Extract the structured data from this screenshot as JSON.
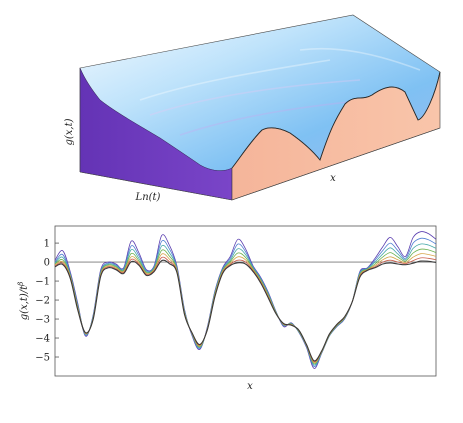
{
  "chart_data": [
    {
      "type": "surface",
      "zlabel": "g(x,t)",
      "ylabel": "Ln(t)",
      "xlabel": "x"
    },
    {
      "type": "line",
      "xlabel": "x",
      "ylabel": "g(x,t)/t^β",
      "ylabel_main": "g(x,t)/t",
      "ylabel_exponent": "β",
      "yticks": [
        1,
        0,
        -1,
        -2,
        -3,
        -4,
        -5
      ],
      "ylim": [
        -6,
        1.9
      ],
      "xlim": [
        0,
        1
      ],
      "reference_line_y": 0,
      "x": [
        0.0,
        0.02,
        0.04,
        0.06,
        0.08,
        0.1,
        0.12,
        0.14,
        0.16,
        0.18,
        0.2,
        0.22,
        0.24,
        0.26,
        0.28,
        0.3,
        0.32,
        0.34,
        0.36,
        0.38,
        0.4,
        0.42,
        0.44,
        0.46,
        0.48,
        0.5,
        0.52,
        0.54,
        0.56,
        0.58,
        0.6,
        0.62,
        0.64,
        0.66,
        0.68,
        0.7,
        0.72,
        0.74,
        0.76,
        0.78,
        0.8,
        0.82,
        0.84,
        0.86,
        0.88,
        0.9,
        0.92,
        0.94,
        0.96,
        0.98,
        1.0
      ],
      "series": [
        {
          "values": [
            0.1,
            0.6,
            -0.5,
            -2.2,
            -3.9,
            -2.8,
            -0.4,
            0.0,
            -0.1,
            -0.3,
            1.1,
            0.5,
            -0.4,
            -0.2,
            1.4,
            0.9,
            -0.2,
            -2.5,
            -3.9,
            -4.6,
            -3.4,
            -1.5,
            -0.3,
            0.3,
            1.2,
            0.7,
            -0.2,
            -0.8,
            -1.6,
            -2.6,
            -3.4,
            -3.2,
            -3.7,
            -4.5,
            -5.6,
            -4.8,
            -3.9,
            -3.4,
            -3.0,
            -2.1,
            -0.5,
            -0.3,
            0.2,
            0.8,
            1.3,
            0.8,
            0.3,
            1.3,
            1.6,
            1.5,
            1.2
          ]
        },
        {
          "values": [
            0.0,
            0.4,
            -0.6,
            -2.3,
            -3.85,
            -2.85,
            -0.5,
            -0.05,
            -0.15,
            -0.35,
            0.85,
            0.35,
            -0.45,
            -0.25,
            1.1,
            0.7,
            -0.3,
            -2.55,
            -3.85,
            -4.55,
            -3.45,
            -1.55,
            -0.35,
            0.2,
            0.95,
            0.55,
            -0.25,
            -0.85,
            -1.65,
            -2.62,
            -3.35,
            -3.22,
            -3.68,
            -4.45,
            -5.5,
            -4.78,
            -3.9,
            -3.38,
            -2.98,
            -2.1,
            -0.55,
            -0.33,
            0.1,
            0.6,
            1.0,
            0.6,
            0.2,
            1.0,
            1.25,
            1.18,
            0.95
          ]
        },
        {
          "values": [
            -0.05,
            0.25,
            -0.65,
            -2.35,
            -3.8,
            -2.9,
            -0.55,
            -0.1,
            -0.2,
            -0.4,
            0.65,
            0.2,
            -0.5,
            -0.3,
            0.85,
            0.5,
            -0.35,
            -2.6,
            -3.82,
            -4.5,
            -3.48,
            -1.6,
            -0.4,
            0.1,
            0.7,
            0.4,
            -0.3,
            -0.9,
            -1.7,
            -2.64,
            -3.32,
            -3.24,
            -3.66,
            -4.42,
            -5.42,
            -4.76,
            -3.88,
            -3.36,
            -2.96,
            -2.1,
            -0.6,
            -0.35,
            0.0,
            0.42,
            0.75,
            0.42,
            0.12,
            0.72,
            0.95,
            0.9,
            0.72
          ]
        },
        {
          "values": [
            -0.1,
            0.12,
            -0.7,
            -2.4,
            -3.78,
            -2.94,
            -0.6,
            -0.15,
            -0.25,
            -0.45,
            0.45,
            0.08,
            -0.55,
            -0.35,
            0.62,
            0.32,
            -0.4,
            -2.64,
            -3.8,
            -4.46,
            -3.5,
            -1.65,
            -0.45,
            0.02,
            0.48,
            0.25,
            -0.35,
            -0.95,
            -1.75,
            -2.66,
            -3.3,
            -3.26,
            -3.64,
            -4.4,
            -5.36,
            -4.74,
            -3.86,
            -3.34,
            -2.94,
            -2.1,
            -0.65,
            -0.38,
            -0.1,
            0.26,
            0.5,
            0.26,
            0.05,
            0.48,
            0.68,
            0.64,
            0.5
          ]
        },
        {
          "values": [
            -0.15,
            0.02,
            -0.75,
            -2.45,
            -3.76,
            -2.97,
            -0.65,
            -0.2,
            -0.3,
            -0.5,
            0.28,
            -0.02,
            -0.6,
            -0.4,
            0.42,
            0.16,
            -0.45,
            -2.68,
            -3.78,
            -4.42,
            -3.52,
            -1.7,
            -0.5,
            -0.06,
            0.28,
            0.12,
            -0.4,
            -1.0,
            -1.8,
            -2.68,
            -3.28,
            -3.28,
            -3.62,
            -4.38,
            -5.3,
            -4.72,
            -3.84,
            -3.32,
            -2.92,
            -2.1,
            -0.7,
            -0.4,
            -0.18,
            0.12,
            0.28,
            0.12,
            -0.02,
            0.26,
            0.44,
            0.4,
            0.3
          ]
        },
        {
          "values": [
            -0.2,
            -0.06,
            -0.8,
            -2.5,
            -3.74,
            -3.0,
            -0.7,
            -0.25,
            -0.35,
            -0.55,
            0.14,
            -0.1,
            -0.65,
            -0.45,
            0.24,
            0.02,
            -0.5,
            -2.72,
            -3.76,
            -4.38,
            -3.54,
            -1.75,
            -0.55,
            -0.12,
            0.1,
            0.0,
            -0.45,
            -1.05,
            -1.85,
            -2.7,
            -3.26,
            -3.3,
            -3.6,
            -4.36,
            -5.25,
            -4.7,
            -3.82,
            -3.3,
            -2.9,
            -2.1,
            -0.75,
            -0.42,
            -0.25,
            0.0,
            0.1,
            0.0,
            -0.08,
            0.08,
            0.22,
            0.2,
            0.12
          ]
        },
        {
          "values": [
            -0.25,
            -0.12,
            -0.85,
            -2.55,
            -3.72,
            -3.03,
            -0.75,
            -0.3,
            -0.4,
            -0.6,
            0.02,
            -0.16,
            -0.7,
            -0.5,
            0.08,
            -0.08,
            -0.55,
            -2.76,
            -3.74,
            -4.34,
            -3.56,
            -1.8,
            -0.6,
            -0.18,
            -0.04,
            -0.1,
            -0.5,
            -1.1,
            -1.9,
            -2.72,
            -3.24,
            -3.32,
            -3.58,
            -4.34,
            -5.2,
            -4.68,
            -3.8,
            -3.28,
            -2.88,
            -2.1,
            -0.8,
            -0.44,
            -0.3,
            -0.1,
            -0.05,
            -0.1,
            -0.14,
            -0.06,
            0.05,
            0.04,
            -0.02
          ]
        }
      ]
    }
  ]
}
